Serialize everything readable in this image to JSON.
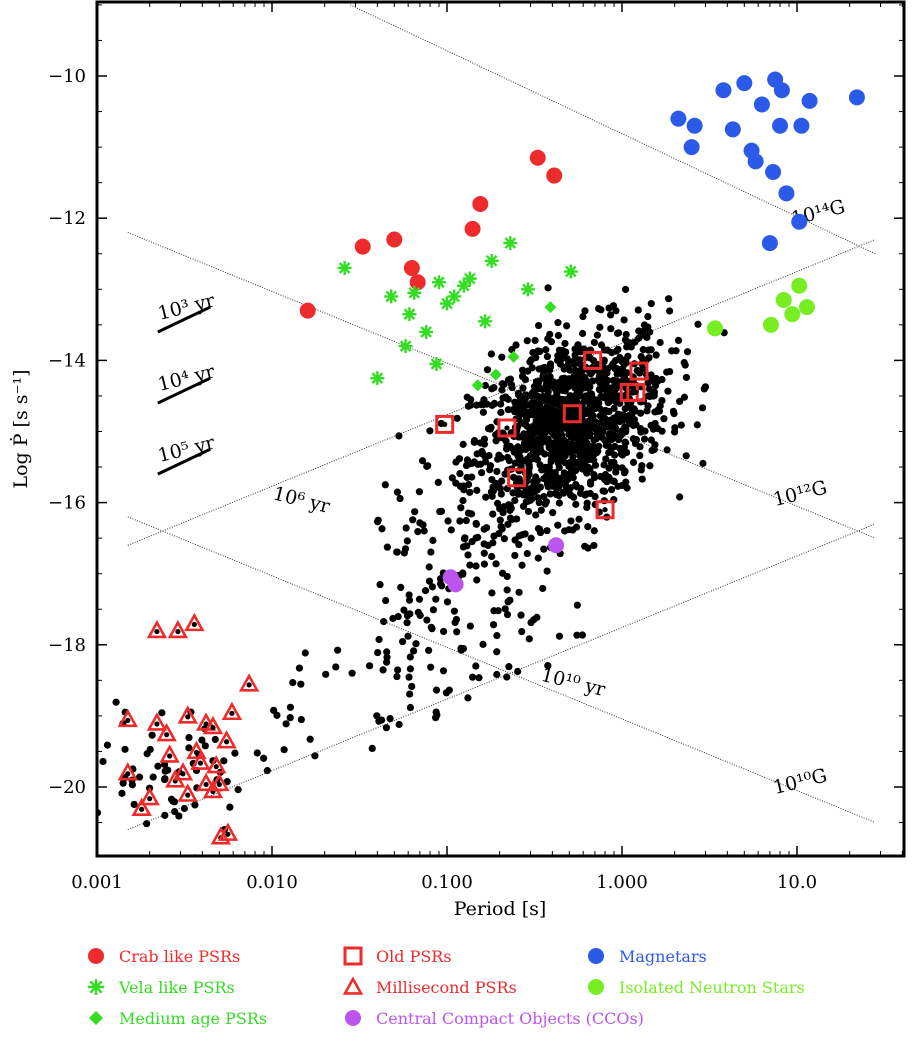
{
  "chart_data": {
    "type": "scatter",
    "title": "",
    "xlabel": "Period [s]",
    "ylabel": "Log Ṗ [s s⁻¹]",
    "xscale": "log",
    "xlim": [
      0.0015,
      30
    ],
    "ylim": [
      -21,
      -9
    ],
    "xticks": [
      {
        "value": 0.001,
        "label": "0.001"
      },
      {
        "value": 0.01,
        "label": "0.010"
      },
      {
        "value": 0.1,
        "label": "0.100"
      },
      {
        "value": 1,
        "label": "1.000"
      },
      {
        "value": 10,
        "label": "10.0"
      }
    ],
    "yticks": [
      {
        "value": -10,
        "label": "−10"
      },
      {
        "value": -12,
        "label": "−12"
      },
      {
        "value": -14,
        "label": "−14"
      },
      {
        "value": -16,
        "label": "−16"
      },
      {
        "value": -18,
        "label": "−18"
      },
      {
        "value": -20,
        "label": "−20"
      }
    ],
    "grid": false,
    "legend_position": "bottom",
    "reference_lines": [
      {
        "kind": "B",
        "label": "10¹⁴G",
        "p1": [
          0.028,
          -9
        ],
        "p2": [
          28,
          -12.5
        ]
      },
      {
        "kind": "B",
        "label": "10¹²G",
        "p1": [
          0.0015,
          -12.2
        ],
        "p2": [
          28,
          -16.5
        ]
      },
      {
        "kind": "B",
        "label": "10¹⁰G",
        "p1": [
          0.0015,
          -16.2
        ],
        "p2": [
          28,
          -20.5
        ]
      },
      {
        "kind": "age",
        "label": "10⁶ yr",
        "p1": [
          0.0015,
          -16.6
        ],
        "p2": [
          28,
          -12.3
        ]
      },
      {
        "kind": "age",
        "label": "10¹⁰ yr",
        "p1": [
          0.0015,
          -20.6
        ],
        "p2": [
          28,
          -16.3
        ]
      }
    ],
    "line_labels": [
      {
        "text": "10¹⁴G",
        "x": 9.5,
        "y": -12.1,
        "angle": -14
      },
      {
        "text": "10¹²G",
        "x": 7.5,
        "y": -16.05,
        "angle": -14
      },
      {
        "text": "10¹⁰G",
        "x": 7.5,
        "y": -20.1,
        "angle": -14
      },
      {
        "text": "10⁶ yr",
        "x": 0.01,
        "y": -15.95,
        "angle": 14
      },
      {
        "text": "10¹⁰ yr",
        "x": 0.34,
        "y": -18.5,
        "angle": 14
      }
    ],
    "age_bars": [
      {
        "label": "10³ yr",
        "x1": 0.0015,
        "x2": 0.0035,
        "y1": -13.6,
        "y2": -13.25
      },
      {
        "label": "10⁴ yr",
        "x1": 0.0015,
        "x2": 0.0035,
        "y1": -14.6,
        "y2": -14.25
      },
      {
        "label": "10⁵ yr",
        "x1": 0.0015,
        "x2": 0.0035,
        "y1": -15.6,
        "y2": -15.25
      }
    ],
    "series": [
      {
        "name": "Crab like PSRs",
        "marker": "circle",
        "color": "#ee2b2b",
        "points": [
          [
            0.016,
            -13.3
          ],
          [
            0.033,
            -12.4
          ],
          [
            0.05,
            -12.3
          ],
          [
            0.063,
            -12.7
          ],
          [
            0.068,
            -12.9
          ],
          [
            0.14,
            -12.15
          ],
          [
            0.155,
            -11.8
          ],
          [
            0.33,
            -11.15
          ],
          [
            0.41,
            -11.4
          ]
        ]
      },
      {
        "name": "Vela like PSRs",
        "marker": "star",
        "color": "#33dd22",
        "points": [
          [
            0.026,
            -12.7
          ],
          [
            0.04,
            -14.25
          ],
          [
            0.048,
            -13.1
          ],
          [
            0.058,
            -13.8
          ],
          [
            0.061,
            -13.35
          ],
          [
            0.065,
            -13.05
          ],
          [
            0.076,
            -13.6
          ],
          [
            0.087,
            -14.05
          ],
          [
            0.09,
            -12.9
          ],
          [
            0.1,
            -13.2
          ],
          [
            0.11,
            -13.1
          ],
          [
            0.125,
            -12.95
          ],
          [
            0.135,
            -12.85
          ],
          [
            0.165,
            -13.45
          ],
          [
            0.18,
            -12.6
          ],
          [
            0.23,
            -12.35
          ],
          [
            0.29,
            -13
          ],
          [
            0.51,
            -12.75
          ]
        ]
      },
      {
        "name": "Medium age PSRs",
        "marker": "diamond",
        "color": "#33dd22",
        "points": [
          [
            0.15,
            -14.35
          ],
          [
            0.19,
            -14.2
          ],
          [
            0.24,
            -13.95
          ],
          [
            0.39,
            -13.25
          ]
        ]
      },
      {
        "name": "Old PSRs",
        "marker": "square",
        "color": "#ee2b2b",
        "points": [
          [
            0.097,
            -14.9
          ],
          [
            0.22,
            -14.95
          ],
          [
            0.25,
            -15.65
          ],
          [
            0.52,
            -14.75
          ],
          [
            0.68,
            -14.0
          ],
          [
            0.8,
            -16.1
          ],
          [
            1.1,
            -14.45
          ],
          [
            1.2,
            -14.45
          ],
          [
            1.25,
            -14.15
          ]
        ]
      },
      {
        "name": "Millisecond PSRs",
        "marker": "triangle",
        "color": "#ee2b2b",
        "points": [
          [
            0.0015,
            -19.05
          ],
          [
            0.0015,
            -19.8
          ],
          [
            0.0018,
            -20.3
          ],
          [
            0.002,
            -20.15
          ],
          [
            0.0022,
            -17.8
          ],
          [
            0.0022,
            -19.1
          ],
          [
            0.0025,
            -19.25
          ],
          [
            0.0026,
            -19.55
          ],
          [
            0.0028,
            -19.9
          ],
          [
            0.0029,
            -17.8
          ],
          [
            0.0031,
            -19.8
          ],
          [
            0.0033,
            -19.0
          ],
          [
            0.0033,
            -20.1
          ],
          [
            0.0036,
            -17.7
          ],
          [
            0.0037,
            -19.5
          ],
          [
            0.0039,
            -19.65
          ],
          [
            0.0042,
            -19.1
          ],
          [
            0.0042,
            -19.95
          ],
          [
            0.0046,
            -19.15
          ],
          [
            0.0046,
            -20.05
          ],
          [
            0.0048,
            -19.7
          ],
          [
            0.005,
            -19.95
          ],
          [
            0.0051,
            -20.7
          ],
          [
            0.0055,
            -19.35
          ],
          [
            0.0056,
            -20.65
          ],
          [
            0.0059,
            -18.95
          ],
          [
            0.0074,
            -18.55
          ]
        ]
      },
      {
        "name": "Magnetars",
        "marker": "circle",
        "color": "#2b59e8",
        "points": [
          [
            2.1,
            -10.6
          ],
          [
            2.6,
            -10.7
          ],
          [
            2.5,
            -11.0
          ],
          [
            3.8,
            -10.2
          ],
          [
            4.3,
            -10.75
          ],
          [
            5.0,
            -10.1
          ],
          [
            5.5,
            -11.05
          ],
          [
            5.8,
            -11.2
          ],
          [
            6.3,
            -10.4
          ],
          [
            7.0,
            -12.35
          ],
          [
            7.3,
            -11.35
          ],
          [
            7.5,
            -10.05
          ],
          [
            8.0,
            -10.7
          ],
          [
            8.2,
            -10.2
          ],
          [
            8.7,
            -11.65
          ],
          [
            10.3,
            -12.05
          ],
          [
            10.6,
            -10.7
          ],
          [
            11.8,
            -10.35
          ],
          [
            22,
            -10.3
          ]
        ]
      },
      {
        "name": "Isolated Neutron Stars",
        "marker": "circle",
        "color": "#77ee22",
        "points": [
          [
            3.4,
            -13.55
          ],
          [
            7.1,
            -13.5
          ],
          [
            8.4,
            -13.15
          ],
          [
            9.4,
            -13.35
          ],
          [
            10.3,
            -12.95
          ],
          [
            11.4,
            -13.25
          ]
        ]
      },
      {
        "name": "Central Compact Objects (CCOs)",
        "marker": "circle",
        "color": "#bb55ee",
        "points": [
          [
            0.105,
            -17.05
          ],
          [
            0.112,
            -17.15
          ],
          [
            0.42,
            -16.6
          ]
        ]
      }
    ],
    "background_population": {
      "name": "",
      "marker": "dot",
      "color": "#000000",
      "approx_count": 1500,
      "distribution": "dense cloud centered near P≈0.5 s, log Ṗ≈−14.8, with sparse tails toward short periods and low Ṗ; millisecond clump near P≈0.003 s, log Ṗ≈−19.7"
    }
  },
  "legend": {
    "items": [
      {
        "label": "Crab like PSRs",
        "marker": "circle",
        "color": "#ee2b2b"
      },
      {
        "label": "Old PSRs",
        "marker": "square",
        "color": "#ee2b2b"
      },
      {
        "label": "Magnetars",
        "marker": "circle",
        "color": "#2b59e8"
      },
      {
        "label": "Vela like PSRs",
        "marker": "star",
        "color": "#33dd22"
      },
      {
        "label": "Millisecond PSRs",
        "marker": "triangle",
        "color": "#ee2b2b"
      },
      {
        "label": "Isolated Neutron Stars",
        "marker": "circle",
        "color": "#77ee22"
      },
      {
        "label": "Medium age PSRs",
        "marker": "diamond",
        "color": "#33dd22"
      },
      {
        "label": "Central Compact Objects (CCOs)",
        "marker": "circle",
        "color": "#bb55ee"
      }
    ]
  }
}
